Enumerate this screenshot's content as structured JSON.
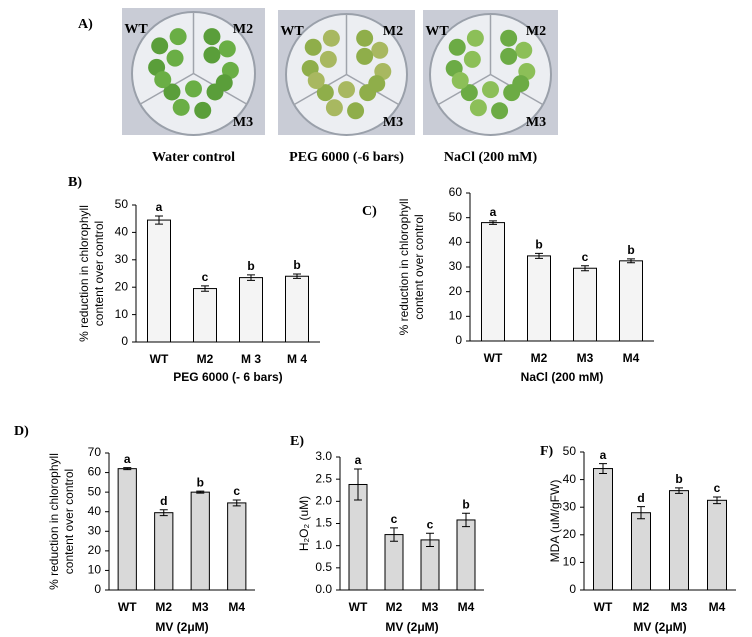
{
  "panel_a": {
    "label": "A)",
    "dishes": [
      {
        "labels": [
          "WT",
          "M2",
          "M3"
        ],
        "caption": "Water control"
      },
      {
        "labels": [
          "WT",
          "M2",
          "M3"
        ],
        "caption": "PEG 6000 (-6 bars)"
      },
      {
        "labels": [
          "WT",
          "M2",
          "M3"
        ],
        "caption": "NaCl (200 mM)"
      }
    ]
  },
  "chart_data": [
    {
      "type": "bar",
      "panel": "B)",
      "y_label": [
        "% reduction in chlorophyll",
        "content over control"
      ],
      "x_label": "PEG 6000 (- 6 bars)",
      "categories": [
        "WT",
        "M2",
        "M 3",
        "M 4"
      ],
      "values": [
        44.5,
        19.5,
        23.5,
        24
      ],
      "errors": [
        1.5,
        1,
        1,
        0.8
      ],
      "annotations": [
        "a",
        "c",
        "b",
        "b"
      ],
      "color": "#f4f4f4",
      "ylim": [
        0,
        50
      ],
      "yticks": [
        0,
        10,
        20,
        30,
        40,
        50
      ]
    },
    {
      "type": "bar",
      "panel": "C)",
      "y_label": [
        "% reduction in chlorophyll",
        "content over control"
      ],
      "x_label": "NaCl (200 mM)",
      "categories": [
        "WT",
        "M2",
        "M3",
        "M4"
      ],
      "values": [
        48,
        34.5,
        29.5,
        32.5
      ],
      "errors": [
        0.7,
        1,
        1,
        0.8
      ],
      "annotations": [
        "a",
        "b",
        "c",
        "b"
      ],
      "color": "#f4f4f4",
      "ylim": [
        0,
        60
      ],
      "yticks": [
        0,
        10,
        20,
        30,
        40,
        50,
        60
      ]
    },
    {
      "type": "bar",
      "panel": "D)",
      "y_label": [
        "% reduction in chlorophyll",
        "content over control"
      ],
      "x_label": "MV (2μM)",
      "categories": [
        "WT",
        "M2",
        "M3",
        "M4"
      ],
      "values": [
        62,
        39.5,
        50,
        44.5
      ],
      "errors": [
        0.5,
        1.5,
        0.5,
        1.5
      ],
      "annotations": [
        "a",
        "d",
        "b",
        "c"
      ],
      "color": "#d9d9d9",
      "ylim": [
        0,
        70
      ],
      "yticks": [
        0,
        10,
        20,
        30,
        40,
        50,
        60,
        70
      ]
    },
    {
      "type": "bar",
      "panel": "E)",
      "y_label": [
        "H₂O₂ (uM)"
      ],
      "x_label": "MV (2μM)",
      "categories": [
        "WT",
        "M2",
        "M3",
        "M4"
      ],
      "values": [
        2.38,
        1.25,
        1.13,
        1.58
      ],
      "errors": [
        0.35,
        0.15,
        0.15,
        0.15
      ],
      "annotations": [
        "a",
        "c",
        "c",
        "b"
      ],
      "color": "#d9d9d9",
      "ylim": [
        0,
        3
      ],
      "yticks": [
        {
          "value": 0,
          "label": "0.0"
        },
        0.5,
        {
          "value": 1,
          "label": "1.0"
        },
        1.5,
        {
          "value": 2,
          "label": "2.0"
        },
        2.5,
        {
          "value": 3,
          "label": "3.0"
        }
      ]
    },
    {
      "type": "bar",
      "panel": "F)",
      "y_label": [
        "MDA (uM/gFW)"
      ],
      "x_label": "MV (2μM)",
      "categories": [
        "WT",
        "M2",
        "M3",
        "M4"
      ],
      "values": [
        44,
        28,
        36,
        32.5
      ],
      "errors": [
        1.8,
        2.2,
        1,
        1.2
      ],
      "annotations": [
        "a",
        "d",
        "b",
        "c"
      ],
      "color": "#d9d9d9",
      "ylim": [
        0,
        50
      ],
      "yticks": [
        0,
        10,
        20,
        30,
        40,
        50
      ]
    }
  ]
}
